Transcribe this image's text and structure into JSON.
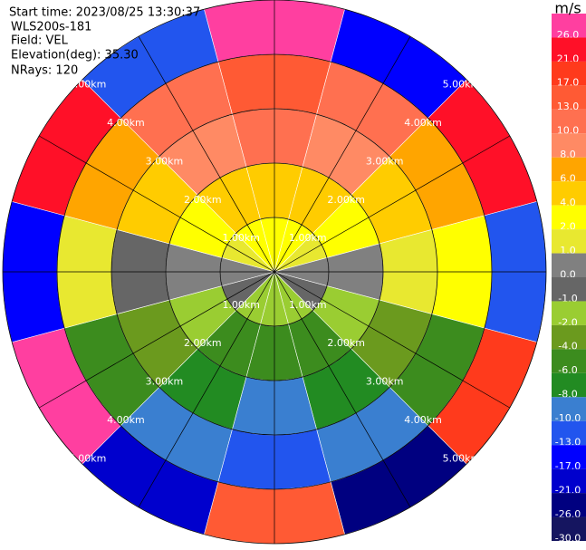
{
  "chart_data": {
    "type": "ppi",
    "annotations": [
      "Start time: 2023/08/25 13:30:37",
      "WLS200s-181",
      "Field: VEL",
      "Elevation(deg): 35.30",
      "NRays: 120"
    ],
    "colorbar_label": "m/s",
    "colorbar_ticks": [
      {
        "value": 26,
        "label": "26.0"
      },
      {
        "value": 21,
        "label": "21.0"
      },
      {
        "value": 17,
        "label": "17.0"
      },
      {
        "value": 13,
        "label": "13.0"
      },
      {
        "value": 10,
        "label": "10.0"
      },
      {
        "value": 8,
        "label": "8.0"
      },
      {
        "value": 6,
        "label": "6.0"
      },
      {
        "value": 4,
        "label": "4.0"
      },
      {
        "value": 2,
        "label": "2.0"
      },
      {
        "value": 1,
        "label": "1.0"
      },
      {
        "value": 0,
        "label": "0.0"
      },
      {
        "value": -1,
        "label": "-1.0"
      },
      {
        "value": -2,
        "label": "-2.0"
      },
      {
        "value": -4,
        "label": "-4.0"
      },
      {
        "value": -6,
        "label": "-6.0"
      },
      {
        "value": -8,
        "label": "-8.0"
      },
      {
        "value": -10,
        "label": "-10.0"
      },
      {
        "value": -13,
        "label": "-13.0"
      },
      {
        "value": -17,
        "label": "-17.0"
      },
      {
        "value": -21,
        "label": "-21.0"
      },
      {
        "value": -26,
        "label": "-26.0"
      },
      {
        "value": -30,
        "label": "-30.0"
      }
    ],
    "colors": [
      "#ff3fa0",
      "#ff1028",
      "#ff3a1c",
      "#ff5a34",
      "#ff7050",
      "#ff8a64",
      "#ffa500",
      "#ffcc00",
      "#ffff00",
      "#e8e830",
      "#808080",
      "#666666",
      "#9acd32",
      "#6b9a1e",
      "#3c8c1e",
      "#228b22",
      "#3a7fd0",
      "#2255ee",
      "#0000ff",
      "#0000cd",
      "#000080",
      "#151560"
    ],
    "rings": [
      {
        "value": 1,
        "label": "1.00km"
      },
      {
        "value": 2,
        "label": "2.00km"
      },
      {
        "value": 3,
        "label": "3.00km"
      },
      {
        "value": 4,
        "label": "4.00km"
      },
      {
        "value": 5,
        "label": "5.00km"
      }
    ],
    "field": {
      "azimuths": [
        0,
        30,
        60,
        90,
        120,
        150,
        180,
        210,
        240,
        270,
        300,
        330
      ],
      "ranges": [
        0,
        1,
        2,
        3,
        4,
        5
      ],
      "values": [
        [
          2,
          4,
          10,
          13,
          26
        ],
        [
          2,
          4,
          8,
          10,
          -17
        ],
        [
          1,
          2,
          4,
          6,
          21
        ],
        [
          0,
          0,
          1,
          2,
          -13
        ],
        [
          -1,
          -2,
          -4,
          -6,
          17
        ],
        [
          -2,
          -6,
          -8,
          -10,
          -26
        ],
        [
          -2,
          -6,
          -10,
          -13,
          13
        ],
        [
          -2,
          -6,
          -8,
          -10,
          -21
        ],
        [
          -1,
          -2,
          -4,
          -6,
          26
        ],
        [
          0,
          0,
          -1,
          1,
          -17
        ],
        [
          1,
          2,
          4,
          6,
          21
        ],
        [
          2,
          4,
          8,
          10,
          -13
        ]
      ]
    }
  }
}
